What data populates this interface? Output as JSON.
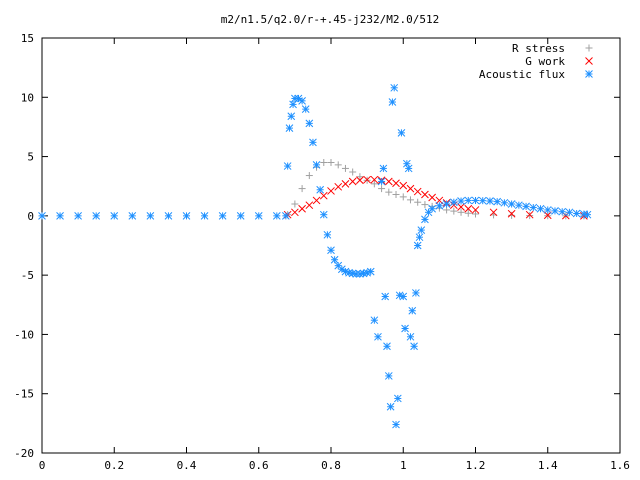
{
  "chart_data": {
    "type": "scatter",
    "title": "m2/n1.5/q2.0/r-+.45-j232/M2.0/512",
    "xlabel": "",
    "ylabel": "",
    "xlim": [
      0,
      1.6
    ],
    "ylim": [
      -20,
      15
    ],
    "xticks": [
      0,
      0.2,
      0.4,
      0.6,
      0.8,
      1,
      1.2,
      1.4,
      1.6
    ],
    "xtick_labels": [
      "0",
      "0.2",
      "0.4",
      "0.6",
      "0.8",
      "1",
      "1.2",
      "1.4",
      "1.6"
    ],
    "yticks": [
      -20,
      -15,
      -10,
      -5,
      0,
      5,
      10,
      15
    ],
    "ytick_labels": [
      "-20",
      "-15",
      "-10",
      "-5",
      "0",
      "5",
      "10",
      "15"
    ],
    "grid": false,
    "legend_position": "top-right",
    "series": [
      {
        "name": "R stress",
        "marker": "plus",
        "color": "#a0a0a0",
        "x": [
          0.68,
          0.7,
          0.72,
          0.74,
          0.76,
          0.78,
          0.8,
          0.82,
          0.84,
          0.86,
          0.88,
          0.9,
          0.92,
          0.94,
          0.96,
          0.98,
          1.0,
          1.02,
          1.04,
          1.06,
          1.08,
          1.1,
          1.12,
          1.14,
          1.16,
          1.18,
          1.2,
          1.25,
          1.3,
          1.35,
          1.4,
          1.45,
          1.5
        ],
        "y": [
          0.1,
          1.0,
          2.3,
          3.4,
          4.1,
          4.5,
          4.5,
          4.3,
          4.0,
          3.7,
          3.3,
          3.0,
          2.7,
          2.3,
          2.0,
          1.8,
          1.6,
          1.35,
          1.15,
          0.95,
          0.8,
          0.65,
          0.5,
          0.4,
          0.3,
          0.22,
          0.16,
          0.08,
          0.04,
          0.02,
          0.01,
          0.0,
          0.0
        ]
      },
      {
        "name": "G work",
        "marker": "cross",
        "color": "#ff0000",
        "x": [
          0.68,
          0.7,
          0.72,
          0.74,
          0.76,
          0.78,
          0.8,
          0.82,
          0.84,
          0.86,
          0.88,
          0.9,
          0.92,
          0.94,
          0.96,
          0.98,
          1.0,
          1.02,
          1.04,
          1.06,
          1.08,
          1.1,
          1.12,
          1.14,
          1.16,
          1.18,
          1.2,
          1.25,
          1.3,
          1.35,
          1.4,
          1.45,
          1.5
        ],
        "y": [
          0.1,
          0.3,
          0.6,
          0.9,
          1.3,
          1.7,
          2.1,
          2.45,
          2.7,
          2.9,
          3.0,
          3.05,
          3.05,
          3.0,
          2.9,
          2.75,
          2.55,
          2.3,
          2.05,
          1.8,
          1.55,
          1.3,
          1.1,
          0.9,
          0.75,
          0.6,
          0.5,
          0.3,
          0.18,
          0.1,
          0.05,
          0.02,
          0.0
        ]
      },
      {
        "name": "Acoustic flux",
        "marker": "star",
        "color": "#1e90ff",
        "x": [
          0.0,
          0.05,
          0.1,
          0.15,
          0.2,
          0.25,
          0.3,
          0.35,
          0.4,
          0.45,
          0.5,
          0.55,
          0.6,
          0.65,
          0.675,
          0.68,
          0.685,
          0.69,
          0.695,
          0.7,
          0.71,
          0.72,
          0.73,
          0.74,
          0.75,
          0.76,
          0.77,
          0.78,
          0.79,
          0.8,
          0.81,
          0.82,
          0.83,
          0.84,
          0.85,
          0.86,
          0.87,
          0.88,
          0.89,
          0.9,
          0.91,
          0.92,
          0.93,
          0.94,
          0.945,
          0.95,
          0.955,
          0.96,
          0.965,
          0.97,
          0.975,
          0.98,
          0.985,
          0.99,
          0.995,
          1.0,
          1.005,
          1.01,
          1.015,
          1.02,
          1.025,
          1.03,
          1.035,
          1.04,
          1.045,
          1.05,
          1.06,
          1.07,
          1.08,
          1.1,
          1.12,
          1.14,
          1.16,
          1.18,
          1.2,
          1.22,
          1.24,
          1.26,
          1.28,
          1.3,
          1.32,
          1.34,
          1.36,
          1.38,
          1.4,
          1.42,
          1.44,
          1.46,
          1.48,
          1.5,
          1.51
        ],
        "y": [
          0,
          0,
          0,
          0,
          0,
          0,
          0,
          0,
          0,
          0,
          0,
          0,
          0,
          0,
          0,
          4.2,
          7.4,
          8.4,
          9.4,
          9.9,
          9.9,
          9.7,
          9.0,
          7.8,
          6.2,
          4.3,
          2.2,
          0.1,
          -1.6,
          -2.9,
          -3.7,
          -4.2,
          -4.5,
          -4.7,
          -4.8,
          -4.85,
          -4.9,
          -4.9,
          -4.85,
          -4.8,
          -4.7,
          -8.8,
          -10.2,
          2.9,
          4.0,
          -6.8,
          -11.0,
          -13.5,
          -16.1,
          9.6,
          10.8,
          -17.6,
          -15.4,
          -6.7,
          7.0,
          -6.8,
          -9.5,
          4.4,
          4.0,
          -10.2,
          -8.0,
          -11.0,
          -6.5,
          -2.5,
          -1.8,
          -1.2,
          -0.3,
          0.3,
          0.6,
          0.85,
          1.0,
          1.15,
          1.25,
          1.3,
          1.3,
          1.28,
          1.25,
          1.2,
          1.1,
          1.0,
          0.9,
          0.8,
          0.7,
          0.6,
          0.5,
          0.42,
          0.35,
          0.3,
          0.2,
          0.15,
          0.1
        ]
      }
    ]
  }
}
